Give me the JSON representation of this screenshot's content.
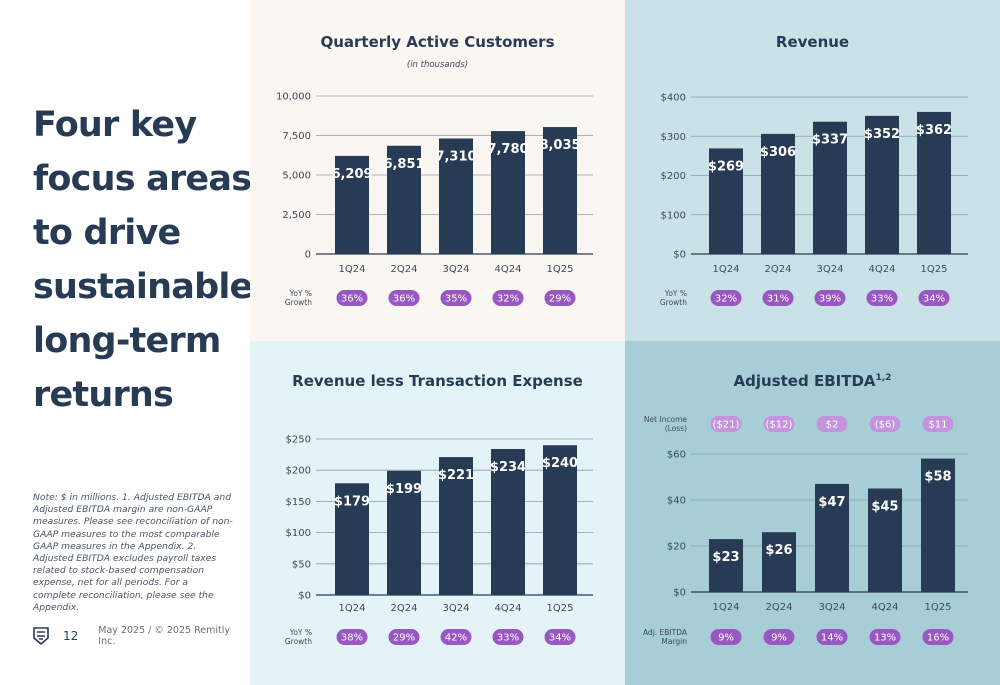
{
  "left": {
    "headline_lines": [
      "Four key",
      "focus areas",
      "to drive",
      "sustainable,",
      "long-term",
      "returns"
    ],
    "note": "Note: $ in millions. 1. Adjusted EBITDA and Adjusted EBITDA margin are non-GAAP measures. Please see reconciliation of non-GAAP measures to the most comparable GAAP measures in the Appendix. 2. Adjusted EBITDA excludes payroll taxes related to stock-based compensation expense, net for all periods. For a complete reconciliation, please see the Appendix.",
    "page_number": "12",
    "copyright": "May 2025 / © 2025 Remitly Inc."
  },
  "colors": {
    "bar": "#283b55",
    "pill": "#9957c1",
    "pill_light": "#c393dd",
    "text": "#283b55"
  },
  "chart_data": [
    {
      "type": "bar",
      "title": "Quarterly Active Customers",
      "subtitle": "(in thousands)",
      "categories": [
        "1Q24",
        "2Q24",
        "3Q24",
        "4Q24",
        "1Q25"
      ],
      "values": [
        6209,
        6851,
        7310,
        7780,
        8035
      ],
      "value_labels": [
        "6,209",
        "6,851",
        "7,310",
        "7,780",
        "8,035"
      ],
      "ylim": [
        0,
        10000
      ],
      "yticks": [
        0,
        2500,
        5000,
        7500,
        10000
      ],
      "ytick_labels": [
        "0",
        "2,500",
        "5,000",
        "7,500",
        "10,000"
      ],
      "grid": true,
      "bottom_row": {
        "label": [
          "YoY %",
          "Growth"
        ],
        "values": [
          "36%",
          "36%",
          "35%",
          "32%",
          "29%"
        ]
      }
    },
    {
      "type": "bar",
      "title": "Revenue",
      "categories": [
        "1Q24",
        "2Q24",
        "3Q24",
        "4Q24",
        "1Q25"
      ],
      "values": [
        269,
        306,
        337,
        352,
        362
      ],
      "value_labels": [
        "$269",
        "$306",
        "$337",
        "$352",
        "$362"
      ],
      "ylim": [
        0,
        400
      ],
      "yticks": [
        0,
        100,
        200,
        300,
        400
      ],
      "ytick_labels": [
        "$0",
        "$100",
        "$200",
        "$300",
        "$400"
      ],
      "grid": true,
      "bottom_row": {
        "label": [
          "YoY %",
          "Growth"
        ],
        "values": [
          "32%",
          "31%",
          "39%",
          "33%",
          "34%"
        ]
      }
    },
    {
      "type": "bar",
      "title": "Revenue less Transaction Expense",
      "categories": [
        "1Q24",
        "2Q24",
        "3Q24",
        "4Q24",
        "1Q25"
      ],
      "values": [
        179,
        199,
        221,
        234,
        240
      ],
      "value_labels": [
        "$179",
        "$199",
        "$221",
        "$234",
        "$240"
      ],
      "ylim": [
        0,
        250
      ],
      "yticks": [
        0,
        50,
        100,
        150,
        200,
        250
      ],
      "ytick_labels": [
        "$0",
        "$50",
        "$100",
        "$150",
        "$200",
        "$250"
      ],
      "grid": true,
      "bottom_row": {
        "label": [
          "YoY %",
          "Growth"
        ],
        "values": [
          "38%",
          "29%",
          "42%",
          "33%",
          "34%"
        ]
      }
    },
    {
      "type": "bar",
      "title": "Adjusted EBITDA",
      "title_superscript": "1,2",
      "categories": [
        "1Q24",
        "2Q24",
        "3Q24",
        "4Q24",
        "1Q25"
      ],
      "values": [
        23,
        26,
        47,
        45,
        58
      ],
      "value_labels": [
        "$23",
        "$26",
        "$47",
        "$45",
        "$58"
      ],
      "ylim": [
        0,
        60
      ],
      "yticks": [
        0,
        20,
        40,
        60
      ],
      "ytick_labels": [
        "$0",
        "$20",
        "$40",
        "$60"
      ],
      "grid": true,
      "top_row": {
        "label": [
          "Net Income",
          "(Loss)"
        ],
        "values": [
          "($21)",
          "($12)",
          "$2",
          "($6)",
          "$11"
        ]
      },
      "bottom_row": {
        "label": [
          "Adj. EBITDA",
          "Margin"
        ],
        "values": [
          "9%",
          "9%",
          "14%",
          "13%",
          "16%"
        ]
      }
    }
  ]
}
